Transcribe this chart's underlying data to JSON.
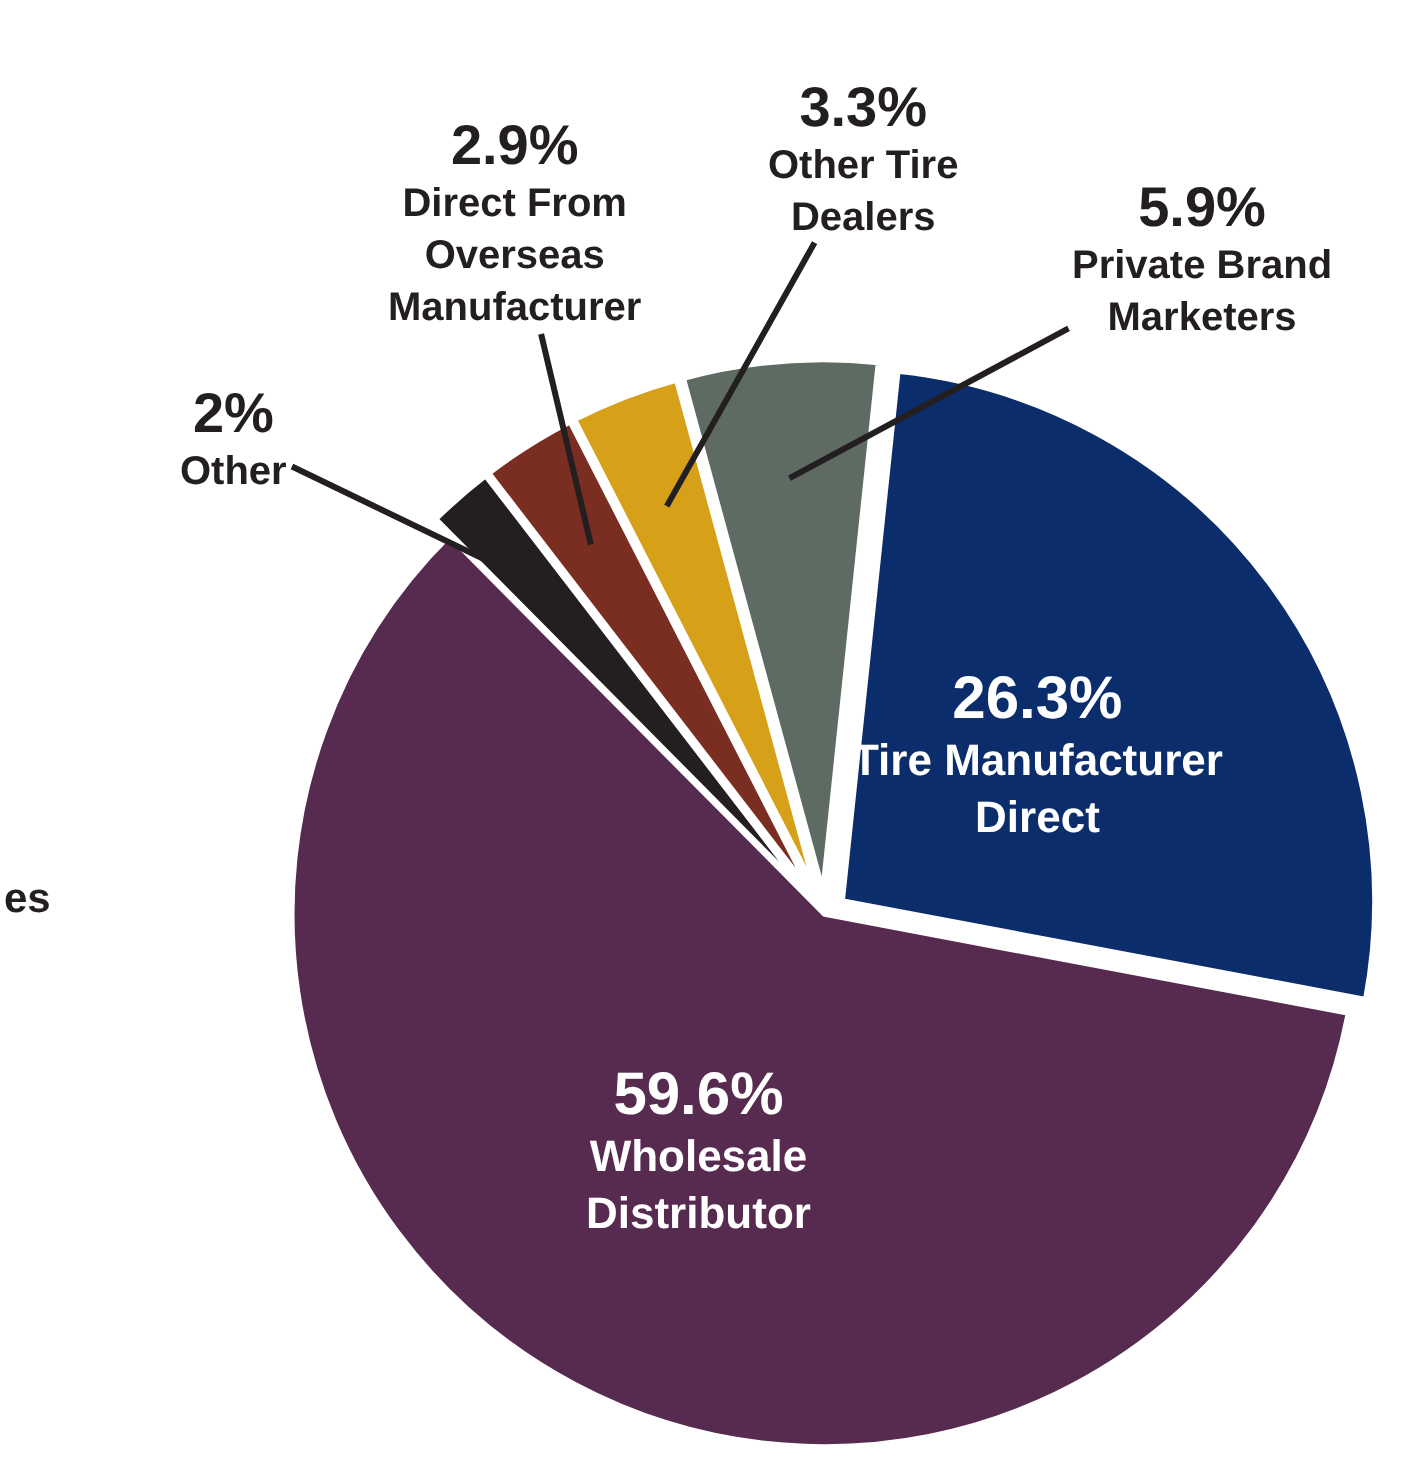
{
  "chart_data": {
    "type": "pie",
    "categories": [
      "Tire Manufacturer Direct",
      "Wholesale Distributor",
      "Other",
      "Direct From Overseas Manufacturer",
      "Other Tire Dealers",
      "Private Brand Marketers"
    ],
    "values": [
      26.3,
      59.6,
      2,
      2.9,
      3.3,
      5.9
    ],
    "value_labels": [
      "26.3%",
      "59.6%",
      "2%",
      "2.9%",
      "3.3%",
      "5.9%"
    ],
    "colors": [
      "#0b2d6b",
      "#572a50",
      "#231f20",
      "#7a2e22",
      "#d6a019",
      "#5d6b62"
    ],
    "legend": false,
    "annotations": [
      "es"
    ]
  }
}
